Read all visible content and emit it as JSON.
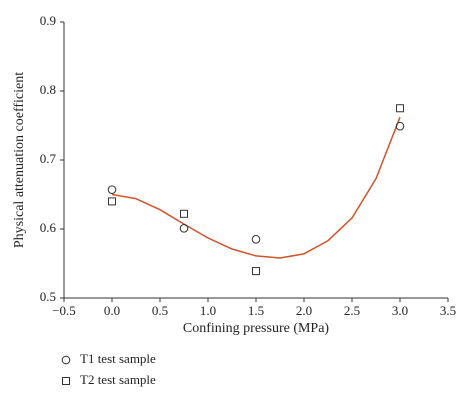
{
  "chart_data": {
    "type": "scatter",
    "x_label": "Confining pressure (MPa)",
    "y_label": "Physical attenuation coefficient",
    "xlim": [
      -0.5,
      3.5
    ],
    "xticks": [
      {
        "value": -0.5,
        "label": "−0.5"
      },
      {
        "value": 0,
        "label": "0.0"
      },
      0.5,
      {
        "value": 1,
        "label": "1.0"
      },
      1.5,
      {
        "value": 2,
        "label": "2.0"
      },
      2.5,
      {
        "value": 3,
        "label": "3.0"
      },
      3.5
    ],
    "ylim": [
      0.5,
      0.9
    ],
    "yticks": [
      0.5,
      0.6,
      0.7,
      0.8,
      0.9
    ],
    "series": [
      {
        "name": "T1 test sample",
        "marker": "circle",
        "color": "#333333",
        "x": [
          0,
          0.75,
          1.5,
          3.0
        ],
        "values": [
          0.657,
          0.601,
          0.585,
          0.749
        ]
      },
      {
        "name": "T2 test sample",
        "marker": "square",
        "color": "#333333",
        "x": [
          0,
          0.75,
          1.5,
          3.0
        ],
        "values": [
          0.64,
          0.622,
          0.539,
          0.775
        ]
      },
      {
        "type": "line",
        "color": "#d0532a",
        "x": [
          0,
          0.25,
          0.5,
          0.75,
          1.0,
          1.25,
          1.5,
          1.75,
          2.0,
          2.25,
          2.5,
          2.75,
          3.0
        ],
        "values": [
          0.65,
          0.644,
          0.628,
          0.607,
          0.587,
          0.571,
          0.561,
          0.558,
          0.564,
          0.583,
          0.616,
          0.673,
          0.762
        ]
      }
    ]
  }
}
